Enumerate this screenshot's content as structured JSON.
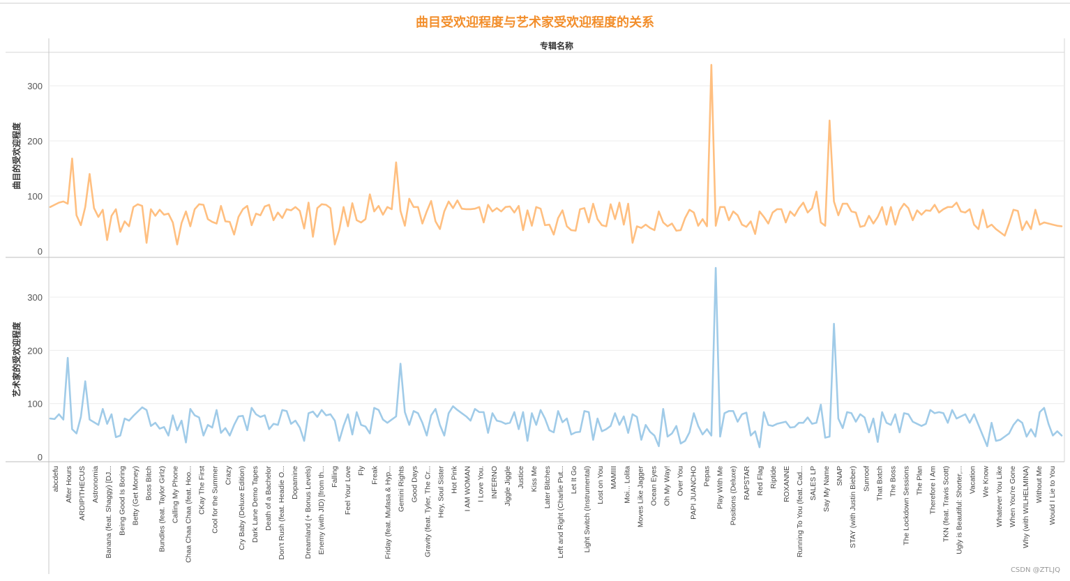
{
  "title": "曲目受欢迎程度与艺术家受欢迎程度的关系",
  "watermark": "CSDN @ZTLJQ",
  "colors": {
    "title": "#f28e2b",
    "top_series": "#ffbf80",
    "bottom_series": "#a0cbe8"
  },
  "chart_data": {
    "type": "line",
    "title": "曲目受欢迎程度与艺术家受欢迎程度的关系",
    "column_header": "专辑名称",
    "x_axis_labels": [
      "abcdefu",
      "After Hours",
      "ARDIPITHECUS",
      "Astronomia",
      "Banana (feat. Shaggy) [DJ...",
      "Being Good Is Boring",
      "Betty (Get Money)",
      "Boss Bitch",
      "Bundles (feat. Taylor Girlz)",
      "Calling My Phone",
      "Chaa Chaa Chaa (feat. Hoo...",
      "CKay The First",
      "Cool for the Summer",
      "Crazy",
      "Cry Baby (Deluxe Edition)",
      "Dark Lane Demo Tapes",
      "Death of a Bachelor",
      "Don't Rush (feat. Headie O...",
      "Dopamine",
      "Dreamland (+ Bonus Levels)",
      "Enemy (with JID) [from th...",
      "Falling",
      "Feel Your Love",
      "Fly",
      "Freak",
      "Friday (feat. Mufasa & Hyp...",
      "Gemini Rights",
      "Good Days",
      "Gravity (feat. Tyler, The Cr...",
      "Hey, Soul Sister",
      "Hot Pink",
      "I AM WOMAN",
      "I Love You.",
      "INFERNO",
      "Jiggle Jiggle",
      "Justice",
      "Kiss Me",
      "Later Bitches",
      "Left and Right (Charlie Put...",
      "Let It Go",
      "Light Switch (Instrumental)",
      "Lost on You",
      "MAMIII",
      "Moi... Lolita",
      "Moves Like Jagger",
      "Ocean Eyes",
      "Oh My Way!",
      "Over You",
      "PAPI JUANCHO",
      "Pepas",
      "Play With Me",
      "Positions (Deluxe)",
      "RAPSTAR",
      "Red Flag",
      "Riptide",
      "ROXANNE",
      "Running To You (feat. Cad...",
      "SALES LP",
      "Say My Name",
      "SNAP",
      "STAY (with Justin Bieber)",
      "Sunroof",
      "That Bxtch",
      "The Boss",
      "The Lockdown Sessions",
      "The Plan",
      "Therefore I Am",
      "TKN (feat. Travis Scott)",
      "Ugly is Beautiful: Shorter,...",
      "Vacation",
      "We Know",
      "Whatever You Like",
      "When You're Gone",
      "Why (with WILHELMINA)",
      "Without Me",
      "Would I Lie to You"
    ],
    "panels": [
      {
        "ylabel": "曲目的受欢迎程度",
        "ylim": [
          0,
          350
        ],
        "yticks": [
          0,
          100,
          200,
          300
        ],
        "values": [
          80,
          84,
          88,
          90,
          86,
          168,
          65,
          47,
          80,
          140,
          78,
          62,
          75,
          20,
          64,
          76,
          35,
          54,
          45,
          80,
          85,
          82,
          15,
          76,
          64,
          75,
          66,
          68,
          52,
          12,
          51,
          72,
          45,
          76,
          85,
          84,
          58,
          53,
          50,
          82,
          54,
          53,
          30,
          62,
          76,
          82,
          47,
          68,
          65,
          81,
          84,
          56,
          70,
          60,
          76,
          74,
          80,
          73,
          41,
          88,
          26,
          78,
          85,
          84,
          78,
          12,
          38,
          80,
          45,
          87,
          56,
          52,
          58,
          103,
          72,
          82,
          66,
          80,
          76,
          161,
          73,
          46,
          95,
          80,
          80,
          50,
          72,
          91,
          54,
          40,
          72,
          90,
          78,
          92,
          77,
          76,
          76,
          77,
          80,
          52,
          84,
          72,
          78,
          72,
          80,
          81,
          70,
          82,
          38,
          74,
          46,
          80,
          77,
          47,
          48,
          30,
          60,
          74,
          45,
          38,
          37,
          76,
          78,
          52,
          86,
          58,
          47,
          45,
          85,
          58,
          88,
          48,
          86,
          15,
          45,
          42,
          48,
          42,
          38,
          72,
          52,
          45,
          50,
          37,
          38,
          60,
          75,
          70,
          46,
          58,
          45,
          338,
          46,
          80,
          80,
          56,
          72,
          65,
          48,
          44,
          54,
          31,
          72,
          62,
          50,
          70,
          76,
          76,
          52,
          72,
          64,
          78,
          88,
          70,
          78,
          108,
          52,
          46,
          237,
          90,
          65,
          86,
          86,
          72,
          70,
          44,
          46,
          64,
          50,
          62,
          80,
          48,
          80,
          48,
          74,
          86,
          78,
          56,
          74,
          66,
          74,
          73,
          84,
          70,
          76,
          80,
          80,
          88,
          72,
          70,
          76,
          48,
          40,
          75,
          43,
          48,
          40,
          34,
          28,
          50,
          75,
          73,
          38,
          54,
          40,
          75,
          48,
          52,
          50,
          48,
          46,
          45
        ]
      },
      {
        "ylabel": "艺术家的受欢迎程度",
        "ylim": [
          0,
          350
        ],
        "yticks": [
          0,
          100,
          200,
          300
        ],
        "values": [
          72,
          71,
          80,
          70,
          186,
          52,
          44,
          75,
          142,
          70,
          65,
          60,
          90,
          62,
          80,
          37,
          40,
          72,
          68,
          77,
          85,
          93,
          88,
          58,
          64,
          53,
          56,
          40,
          78,
          50,
          68,
          27,
          90,
          78,
          74,
          40,
          60,
          55,
          88,
          45,
          54,
          40,
          60,
          76,
          77,
          50,
          92,
          80,
          75,
          78,
          52,
          62,
          60,
          88,
          86,
          62,
          68,
          55,
          30,
          82,
          85,
          75,
          88,
          78,
          80,
          68,
          30,
          58,
          80,
          42,
          84,
          60,
          57,
          44,
          92,
          88,
          70,
          64,
          70,
          76,
          175,
          84,
          60,
          86,
          82,
          64,
          40,
          78,
          90,
          60,
          40,
          82,
          95,
          88,
          82,
          76,
          68,
          90,
          84,
          84,
          45,
          82,
          68,
          66,
          62,
          64,
          84,
          52,
          84,
          30,
          82,
          60,
          88,
          72,
          50,
          46,
          86,
          65,
          72,
          42,
          46,
          47,
          86,
          84,
          32,
          72,
          48,
          52,
          58,
          82,
          60,
          76,
          45,
          80,
          75,
          32,
          60,
          47,
          40,
          20,
          90,
          38,
          44,
          58,
          25,
          30,
          46,
          82,
          58,
          42,
          52,
          40,
          355,
          38,
          82,
          86,
          86,
          66,
          80,
          83,
          40,
          48,
          18,
          84,
          60,
          58,
          62,
          64,
          66,
          55,
          56,
          64,
          64,
          74,
          62,
          64,
          98,
          36,
          38,
          250,
          72,
          54,
          84,
          82,
          66,
          80,
          74,
          46,
          72,
          28,
          84,
          64,
          60,
          80,
          46,
          82,
          80,
          66,
          62,
          58,
          62,
          88,
          82,
          84,
          82,
          64,
          88,
          72,
          76,
          80,
          64,
          80,
          60,
          40,
          20,
          64,
          30,
          32,
          38,
          44,
          60,
          70,
          64,
          38,
          52,
          38,
          84,
          92,
          62,
          40,
          48,
          40
        ]
      }
    ],
    "grid": true
  }
}
